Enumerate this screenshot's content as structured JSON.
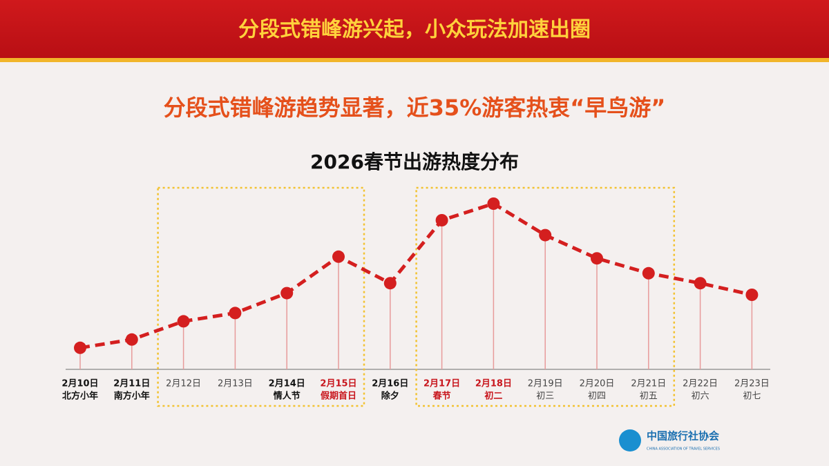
{
  "header": {
    "title": "分段式错峰游兴起，小众玩法加速出圈"
  },
  "subtitle": "分段式错峰游趋势显著，近35%游客热衷“早鸟游”",
  "chart_data": {
    "type": "line",
    "title": "2026春节出游热度分布",
    "categories": [
      "2月10日",
      "2月11日",
      "2月12日",
      "2月13日",
      "2月14日",
      "2月15日",
      "2月16日",
      "2月17日",
      "2月18日",
      "2月19日",
      "2月20日",
      "2月21日",
      "2月22日",
      "2月23日"
    ],
    "sublabels": [
      "北方小年",
      "南方小年",
      null,
      null,
      "情人节",
      "假期首日",
      "除夕",
      "春节",
      "初二",
      "初三",
      "初四",
      "初五",
      "初六",
      "初七"
    ],
    "label_colors": [
      "#111",
      "#111",
      "#444",
      "#444",
      "#111",
      "#c8161d",
      "#111",
      "#c8161d",
      "#c8161d",
      "#444",
      "#444",
      "#444",
      "#444",
      "#444"
    ],
    "values": [
      13,
      18,
      29,
      34,
      46,
      68,
      52,
      90,
      100,
      81,
      67,
      58,
      52,
      45
    ],
    "color": "#d41f1f",
    "ylim": [
      0,
      100
    ],
    "highlight_ranges": [
      [
        2,
        5
      ],
      [
        7,
        11
      ]
    ]
  },
  "footer": {
    "logo_text": "中国旅行社协会",
    "logo_subtext": "CHINA ASSOCIATION OF TRAVEL SERVICES"
  }
}
